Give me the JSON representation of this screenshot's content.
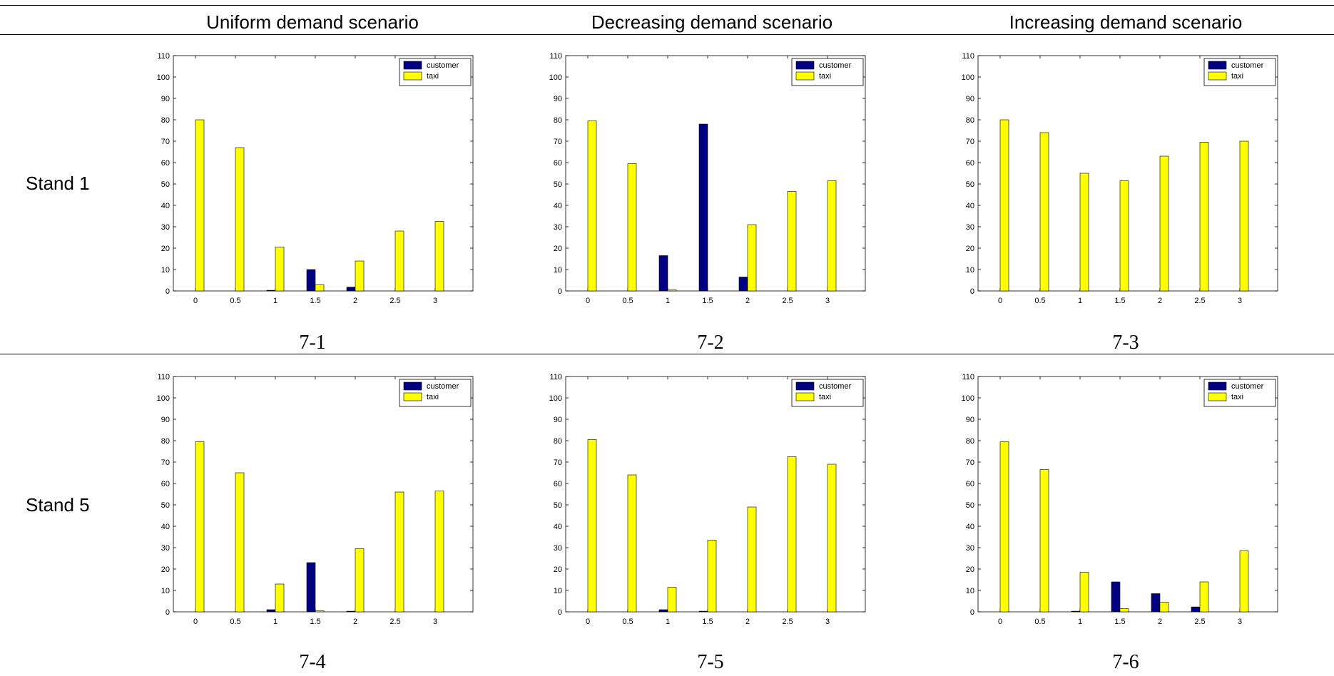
{
  "columns": [
    "Uniform demand scenario",
    "Decreasing demand scenario",
    "Increasing demand scenario"
  ],
  "rows": [
    "Stand 1",
    "Stand 5"
  ],
  "colors": {
    "customer": "#000080",
    "taxi": "#ffff00"
  },
  "chart_data": [
    {
      "type": "bar",
      "label": "7-1",
      "categories": [
        "0",
        "0.5",
        "1",
        "1.5",
        "2",
        "2.5",
        "3"
      ],
      "ylim": [
        0,
        110
      ],
      "yticks": [
        "0",
        "10",
        "20",
        "30",
        "40",
        "50",
        "60",
        "70",
        "80",
        "90",
        "100",
        "110"
      ],
      "legend": "top-right",
      "series": [
        {
          "name": "customer",
          "values": [
            0,
            0,
            0.3,
            10,
            1.8,
            0,
            0
          ]
        },
        {
          "name": "taxi",
          "values": [
            80,
            67,
            20.5,
            3,
            14,
            28,
            32.5
          ]
        }
      ]
    },
    {
      "type": "bar",
      "label": "7-2",
      "categories": [
        "0",
        "0.5",
        "1",
        "1.5",
        "2",
        "2.5",
        "3"
      ],
      "ylim": [
        0,
        110
      ],
      "yticks": [
        "0",
        "10",
        "20",
        "30",
        "40",
        "50",
        "60",
        "70",
        "80",
        "90",
        "100",
        "110"
      ],
      "legend": "top-right",
      "series": [
        {
          "name": "customer",
          "values": [
            0,
            0,
            16.5,
            78,
            6.5,
            0,
            0
          ]
        },
        {
          "name": "taxi",
          "values": [
            79.5,
            59.5,
            0.5,
            0,
            31,
            46.5,
            51.5
          ]
        }
      ]
    },
    {
      "type": "bar",
      "label": "7-3",
      "categories": [
        "0",
        "0.5",
        "1",
        "1.5",
        "2",
        "2.5",
        "3"
      ],
      "ylim": [
        0,
        110
      ],
      "yticks": [
        "0",
        "10",
        "20",
        "30",
        "40",
        "50",
        "60",
        "70",
        "80",
        "90",
        "100",
        "110"
      ],
      "legend": "top-right",
      "series": [
        {
          "name": "customer",
          "values": [
            0,
            0,
            0,
            0,
            0,
            0,
            0
          ]
        },
        {
          "name": "taxi",
          "values": [
            80,
            74,
            55,
            51.5,
            63,
            69.5,
            70
          ]
        }
      ]
    },
    {
      "type": "bar",
      "label": "7-4",
      "categories": [
        "0",
        "0.5",
        "1",
        "1.5",
        "2",
        "2.5",
        "3"
      ],
      "ylim": [
        0,
        110
      ],
      "yticks": [
        "0",
        "10",
        "20",
        "30",
        "40",
        "50",
        "60",
        "70",
        "80",
        "90",
        "100",
        "110"
      ],
      "legend": "top-right",
      "series": [
        {
          "name": "customer",
          "values": [
            0,
            0,
            1,
            23,
            0.3,
            0,
            0
          ]
        },
        {
          "name": "taxi",
          "values": [
            79.5,
            65,
            13,
            0.5,
            29.5,
            56,
            56.5
          ]
        }
      ]
    },
    {
      "type": "bar",
      "label": "7-5",
      "categories": [
        "0",
        "0.5",
        "1",
        "1.5",
        "2",
        "2.5",
        "3"
      ],
      "ylim": [
        0,
        110
      ],
      "yticks": [
        "0",
        "10",
        "20",
        "30",
        "40",
        "50",
        "60",
        "70",
        "80",
        "90",
        "100",
        "110"
      ],
      "legend": "top-right",
      "series": [
        {
          "name": "customer",
          "values": [
            0,
            0,
            1,
            0.3,
            0,
            0,
            0
          ]
        },
        {
          "name": "taxi",
          "values": [
            80.5,
            64,
            11.5,
            33.5,
            49,
            72.5,
            69
          ]
        }
      ]
    },
    {
      "type": "bar",
      "label": "7-6",
      "categories": [
        "0",
        "0.5",
        "1",
        "1.5",
        "2",
        "2.5",
        "3"
      ],
      "ylim": [
        0,
        110
      ],
      "yticks": [
        "0",
        "10",
        "20",
        "30",
        "40",
        "50",
        "60",
        "70",
        "80",
        "90",
        "100",
        "110"
      ],
      "legend": "top-right",
      "series": [
        {
          "name": "customer",
          "values": [
            0,
            0,
            0.3,
            14,
            8.5,
            2.3,
            0
          ]
        },
        {
          "name": "taxi",
          "values": [
            79.5,
            66.5,
            18.5,
            1.5,
            4.5,
            14,
            28.5
          ]
        }
      ]
    }
  ]
}
